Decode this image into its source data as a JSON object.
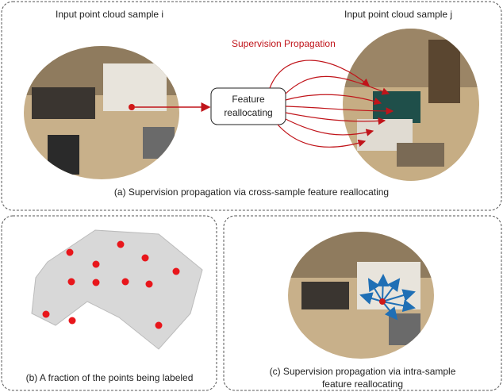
{
  "panel_a": {
    "label_i": "Input point cloud sample i",
    "label_j": "Input point cloud sample j",
    "propagation": "Supervision Propagation",
    "box": [
      "Feature",
      "reallocating"
    ],
    "caption": "(a) Supervision propagation via cross-sample feature reallocating"
  },
  "panel_b": {
    "caption": "(b) A fraction of the points being labeled"
  },
  "panel_c": {
    "caption": [
      "(c) Supervision propagation via intra-sample",
      "feature reallocating"
    ]
  }
}
